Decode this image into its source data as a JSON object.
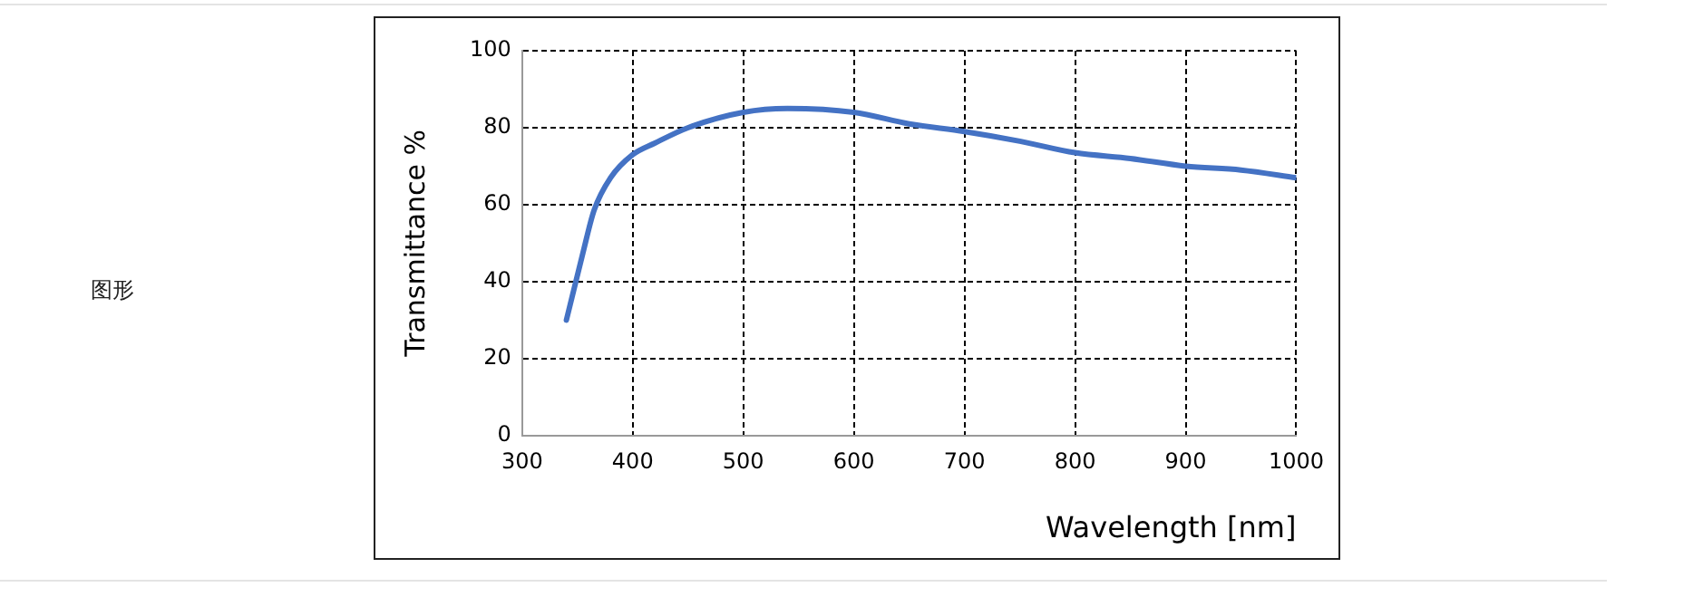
{
  "chart_data": {
    "type": "line",
    "xlabel": "Wavelength [nm]",
    "ylabel": "Transmittance %",
    "annotations": [
      "图形"
    ],
    "x": [
      340,
      355,
      365,
      380,
      400,
      420,
      450,
      500,
      540,
      600,
      650,
      700,
      750,
      800,
      850,
      900,
      950,
      1000
    ],
    "series": [
      {
        "color": "#4472c4",
        "values": [
          30,
          47.5,
          58.5,
          67,
          73,
          76,
          80,
          84,
          85,
          84,
          81,
          79,
          76.5,
          73.5,
          72,
          70,
          69,
          67
        ]
      }
    ],
    "xlim": [
      300,
      1000
    ],
    "xticks": [
      300,
      400,
      500,
      600,
      700,
      800,
      900,
      1000
    ],
    "ylim": [
      0,
      100
    ],
    "yticks": [
      0,
      20,
      40,
      60,
      80,
      100
    ],
    "grid": true,
    "legend": false,
    "marker": "none",
    "line_style": "solid"
  }
}
